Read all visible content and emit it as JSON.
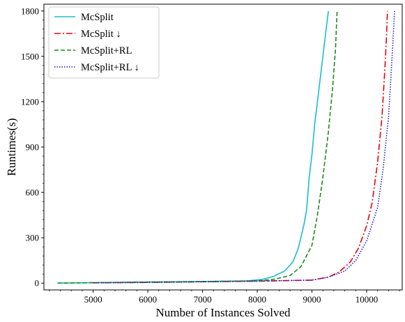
{
  "chart_data": {
    "type": "line",
    "title": "",
    "xlabel": "Number of Instances Solved",
    "ylabel": "Runtimes(s)",
    "xlim": [
      4100,
      10650
    ],
    "ylim": [
      -45,
      1845
    ],
    "xticks": [
      5000,
      6000,
      7000,
      8000,
      9000,
      10000
    ],
    "yticks": [
      0,
      300,
      600,
      900,
      1200,
      1500,
      1800
    ],
    "grid": false,
    "legend_position": "top-left",
    "series": [
      {
        "name": "McSplit",
        "color": "#17becf",
        "style": "solid",
        "points": [
          [
            4350,
            0
          ],
          [
            5000,
            3
          ],
          [
            6000,
            7
          ],
          [
            7000,
            11
          ],
          [
            7800,
            15
          ],
          [
            8100,
            25
          ],
          [
            8300,
            45
          ],
          [
            8500,
            80
          ],
          [
            8650,
            140
          ],
          [
            8750,
            230
          ],
          [
            8850,
            380
          ],
          [
            8900,
            480
          ],
          [
            8950,
            700
          ],
          [
            9000,
            850
          ],
          [
            9050,
            1050
          ],
          [
            9100,
            1200
          ],
          [
            9150,
            1350
          ],
          [
            9200,
            1500
          ],
          [
            9250,
            1650
          ],
          [
            9300,
            1800
          ]
        ]
      },
      {
        "name": "McSplit ↓",
        "color": "#e8000b",
        "style": "dashdot",
        "points": [
          [
            5000,
            2
          ],
          [
            6000,
            5
          ],
          [
            7000,
            9
          ],
          [
            8000,
            13
          ],
          [
            9000,
            20
          ],
          [
            9300,
            40
          ],
          [
            9500,
            75
          ],
          [
            9700,
            140
          ],
          [
            9850,
            230
          ],
          [
            10000,
            380
          ],
          [
            10100,
            530
          ],
          [
            10200,
            800
          ],
          [
            10280,
            1100
          ],
          [
            10330,
            1400
          ],
          [
            10360,
            1600
          ],
          [
            10380,
            1800
          ]
        ]
      },
      {
        "name": "McSplit+RL",
        "color": "#1a8a1a",
        "style": "dashed",
        "points": [
          [
            4350,
            0
          ],
          [
            5000,
            3
          ],
          [
            6000,
            7
          ],
          [
            7000,
            11
          ],
          [
            8000,
            15
          ],
          [
            8300,
            25
          ],
          [
            8600,
            50
          ],
          [
            8800,
            110
          ],
          [
            9000,
            250
          ],
          [
            9100,
            450
          ],
          [
            9200,
            700
          ],
          [
            9300,
            1000
          ],
          [
            9380,
            1300
          ],
          [
            9430,
            1550
          ],
          [
            9460,
            1800
          ]
        ]
      },
      {
        "name": "McSplit+RL ↓",
        "color": "#1f1fcf",
        "style": "dotted",
        "points": [
          [
            5000,
            2
          ],
          [
            6000,
            5
          ],
          [
            7000,
            9
          ],
          [
            8000,
            13
          ],
          [
            9000,
            20
          ],
          [
            9300,
            40
          ],
          [
            9600,
            80
          ],
          [
            9800,
            150
          ],
          [
            10000,
            280
          ],
          [
            10200,
            500
          ],
          [
            10300,
            750
          ],
          [
            10400,
            1100
          ],
          [
            10450,
            1400
          ],
          [
            10480,
            1600
          ],
          [
            10510,
            1800
          ]
        ]
      }
    ]
  }
}
